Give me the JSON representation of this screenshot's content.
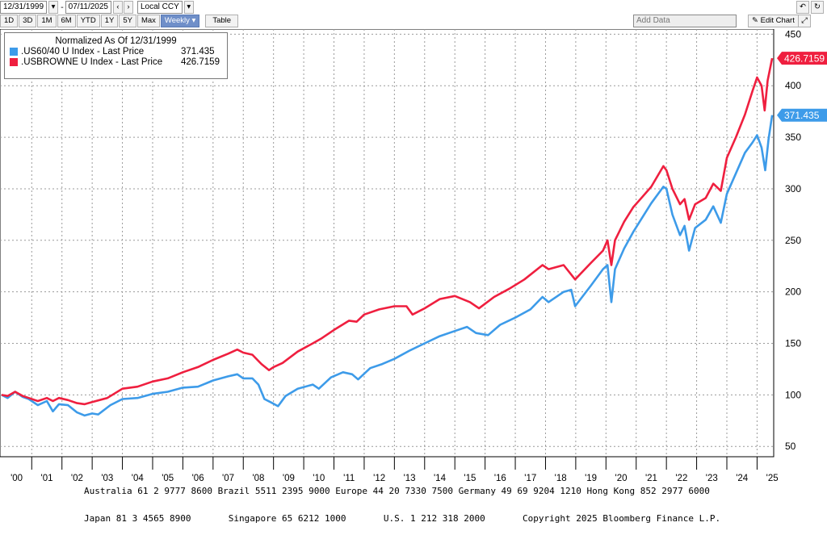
{
  "toolbar": {
    "start_date": "12/31/1999",
    "end_date": "07/11/2025",
    "currency": "Local CCY",
    "periods": [
      "1D",
      "3D",
      "1M",
      "6M",
      "YTD",
      "1Y",
      "5Y",
      "Max"
    ],
    "frequency": "Weekly",
    "table_label": "Table",
    "add_data": "Add Data",
    "edit_chart": "Edit Chart"
  },
  "legend": {
    "title": "Normalized As Of 12/31/1999",
    "entries": [
      {
        "label": ".US60/40 U Index - Last Price",
        "value": "371.435",
        "color": "#3d9be9"
      },
      {
        "label": ".USBROWNE U Index - Last Price",
        "value": "426.7159",
        "color": "#ef1f3f"
      }
    ]
  },
  "chart_data": {
    "type": "line",
    "x_unit": "year",
    "xlim": [
      1999.95,
      2025.55
    ],
    "ylim": [
      40,
      455
    ],
    "yticks": [
      50,
      100,
      150,
      200,
      250,
      300,
      350,
      400,
      450
    ],
    "xticks": [
      {
        "value": 2000.5,
        "label": "'00"
      },
      {
        "value": 2001.5,
        "label": "'01"
      },
      {
        "value": 2002.5,
        "label": "'02"
      },
      {
        "value": 2003.5,
        "label": "'03"
      },
      {
        "value": 2004.5,
        "label": "'04"
      },
      {
        "value": 2005.5,
        "label": "'05"
      },
      {
        "value": 2006.5,
        "label": "'06"
      },
      {
        "value": 2007.5,
        "label": "'07"
      },
      {
        "value": 2008.5,
        "label": "'08"
      },
      {
        "value": 2009.5,
        "label": "'09"
      },
      {
        "value": 2010.5,
        "label": "'10"
      },
      {
        "value": 2011.5,
        "label": "'11"
      },
      {
        "value": 2012.5,
        "label": "'12"
      },
      {
        "value": 2013.5,
        "label": "'13"
      },
      {
        "value": 2014.5,
        "label": "'14"
      },
      {
        "value": 2015.5,
        "label": "'15"
      },
      {
        "value": 2016.5,
        "label": "'16"
      },
      {
        "value": 2017.5,
        "label": "'17"
      },
      {
        "value": 2018.5,
        "label": "'18"
      },
      {
        "value": 2019.5,
        "label": "'19"
      },
      {
        "value": 2020.5,
        "label": "'20"
      },
      {
        "value": 2021.5,
        "label": "'21"
      },
      {
        "value": 2022.5,
        "label": "'22"
      },
      {
        "value": 2023.5,
        "label": "'23"
      },
      {
        "value": 2024.5,
        "label": "'24"
      },
      {
        "value": 2025.5,
        "label": "'25"
      }
    ],
    "grid": true,
    "legend_position": "top-left",
    "series": [
      {
        "name": ".US60/40 U Index - Last Price",
        "color": "#3d9be9",
        "last_label": "371.435",
        "points": [
          [
            2000.0,
            100
          ],
          [
            2000.2,
            97
          ],
          [
            2000.45,
            103
          ],
          [
            2000.7,
            98
          ],
          [
            2000.9,
            96
          ],
          [
            2001.2,
            90
          ],
          [
            2001.5,
            94
          ],
          [
            2001.7,
            84
          ],
          [
            2001.9,
            91
          ],
          [
            2002.2,
            90
          ],
          [
            2002.5,
            83
          ],
          [
            2002.75,
            80
          ],
          [
            2003.0,
            82
          ],
          [
            2003.2,
            81
          ],
          [
            2003.6,
            90
          ],
          [
            2004.0,
            96
          ],
          [
            2004.5,
            97
          ],
          [
            2005.0,
            101
          ],
          [
            2005.5,
            103
          ],
          [
            2006.0,
            107
          ],
          [
            2006.5,
            108
          ],
          [
            2007.0,
            114
          ],
          [
            2007.5,
            118
          ],
          [
            2007.8,
            120
          ],
          [
            2008.0,
            116
          ],
          [
            2008.3,
            116
          ],
          [
            2008.5,
            110
          ],
          [
            2008.7,
            96
          ],
          [
            2008.9,
            93
          ],
          [
            2009.15,
            89
          ],
          [
            2009.4,
            99
          ],
          [
            2009.8,
            106
          ],
          [
            2010.3,
            110
          ],
          [
            2010.5,
            106
          ],
          [
            2010.9,
            117
          ],
          [
            2011.3,
            122
          ],
          [
            2011.6,
            120
          ],
          [
            2011.8,
            115
          ],
          [
            2012.2,
            126
          ],
          [
            2012.6,
            130
          ],
          [
            2013.0,
            135
          ],
          [
            2013.5,
            143
          ],
          [
            2014.0,
            150
          ],
          [
            2014.5,
            157
          ],
          [
            2015.0,
            162
          ],
          [
            2015.4,
            166
          ],
          [
            2015.7,
            160
          ],
          [
            2016.1,
            158
          ],
          [
            2016.5,
            168
          ],
          [
            2017.0,
            175
          ],
          [
            2017.5,
            183
          ],
          [
            2017.9,
            195
          ],
          [
            2018.1,
            190
          ],
          [
            2018.6,
            200
          ],
          [
            2018.85,
            202
          ],
          [
            2018.98,
            186
          ],
          [
            2019.5,
            206
          ],
          [
            2019.9,
            222
          ],
          [
            2020.05,
            226
          ],
          [
            2020.18,
            190
          ],
          [
            2020.3,
            222
          ],
          [
            2020.6,
            242
          ],
          [
            2020.9,
            258
          ],
          [
            2021.2,
            272
          ],
          [
            2021.5,
            286
          ],
          [
            2021.9,
            302
          ],
          [
            2022.0,
            300
          ],
          [
            2022.2,
            275
          ],
          [
            2022.45,
            255
          ],
          [
            2022.6,
            264
          ],
          [
            2022.75,
            240
          ],
          [
            2022.95,
            262
          ],
          [
            2023.3,
            270
          ],
          [
            2023.55,
            283
          ],
          [
            2023.8,
            267
          ],
          [
            2024.0,
            295
          ],
          [
            2024.3,
            315
          ],
          [
            2024.6,
            335
          ],
          [
            2024.85,
            345
          ],
          [
            2025.0,
            352
          ],
          [
            2025.15,
            340
          ],
          [
            2025.27,
            318
          ],
          [
            2025.38,
            348
          ],
          [
            2025.5,
            371.435
          ]
        ]
      },
      {
        "name": ".USBROWNE U Index - Last Price",
        "color": "#ef1f3f",
        "last_label": "426.7159",
        "points": [
          [
            2000.0,
            100
          ],
          [
            2000.2,
            99
          ],
          [
            2000.45,
            103
          ],
          [
            2000.7,
            99
          ],
          [
            2000.9,
            97
          ],
          [
            2001.2,
            94
          ],
          [
            2001.5,
            97
          ],
          [
            2001.7,
            94
          ],
          [
            2001.9,
            97
          ],
          [
            2002.2,
            95
          ],
          [
            2002.5,
            92
          ],
          [
            2002.75,
            91
          ],
          [
            2003.0,
            93
          ],
          [
            2003.5,
            97
          ],
          [
            2004.0,
            106
          ],
          [
            2004.5,
            108
          ],
          [
            2005.0,
            113
          ],
          [
            2005.5,
            116
          ],
          [
            2006.0,
            122
          ],
          [
            2006.5,
            127
          ],
          [
            2007.0,
            134
          ],
          [
            2007.5,
            140
          ],
          [
            2007.8,
            144
          ],
          [
            2008.0,
            141
          ],
          [
            2008.3,
            139
          ],
          [
            2008.6,
            130
          ],
          [
            2008.85,
            124
          ],
          [
            2009.0,
            127
          ],
          [
            2009.3,
            131
          ],
          [
            2009.8,
            142
          ],
          [
            2010.3,
            150
          ],
          [
            2010.6,
            155
          ],
          [
            2011.0,
            163
          ],
          [
            2011.5,
            172
          ],
          [
            2011.75,
            171
          ],
          [
            2012.0,
            178
          ],
          [
            2012.5,
            183
          ],
          [
            2013.0,
            186
          ],
          [
            2013.4,
            186
          ],
          [
            2013.6,
            178
          ],
          [
            2014.0,
            184
          ],
          [
            2014.5,
            193
          ],
          [
            2015.0,
            196
          ],
          [
            2015.5,
            190
          ],
          [
            2015.8,
            184
          ],
          [
            2016.3,
            195
          ],
          [
            2016.8,
            203
          ],
          [
            2017.3,
            212
          ],
          [
            2017.9,
            226
          ],
          [
            2018.1,
            222
          ],
          [
            2018.6,
            226
          ],
          [
            2018.98,
            212
          ],
          [
            2019.5,
            228
          ],
          [
            2019.9,
            240
          ],
          [
            2020.05,
            250
          ],
          [
            2020.18,
            226
          ],
          [
            2020.3,
            250
          ],
          [
            2020.6,
            268
          ],
          [
            2020.9,
            282
          ],
          [
            2021.2,
            292
          ],
          [
            2021.5,
            302
          ],
          [
            2021.9,
            322
          ],
          [
            2022.0,
            318
          ],
          [
            2022.2,
            300
          ],
          [
            2022.45,
            285
          ],
          [
            2022.6,
            290
          ],
          [
            2022.75,
            270
          ],
          [
            2022.95,
            285
          ],
          [
            2023.3,
            291
          ],
          [
            2023.55,
            305
          ],
          [
            2023.8,
            298
          ],
          [
            2024.0,
            330
          ],
          [
            2024.3,
            350
          ],
          [
            2024.6,
            372
          ],
          [
            2024.85,
            395
          ],
          [
            2025.0,
            408
          ],
          [
            2025.15,
            400
          ],
          [
            2025.25,
            376
          ],
          [
            2025.35,
            405
          ],
          [
            2025.5,
            426.7159
          ]
        ]
      }
    ]
  },
  "footer": {
    "line1": "Australia 61 2 9777 8600 Brazil 5511 2395 9000 Europe 44 20 7330 7500 Germany 49 69 9204 1210 Hong Kong 852 2977 6000",
    "line2": "Japan 81 3 4565 8900       Singapore 65 6212 1000       U.S. 1 212 318 2000       Copyright 2025 Bloomberg Finance L.P."
  }
}
